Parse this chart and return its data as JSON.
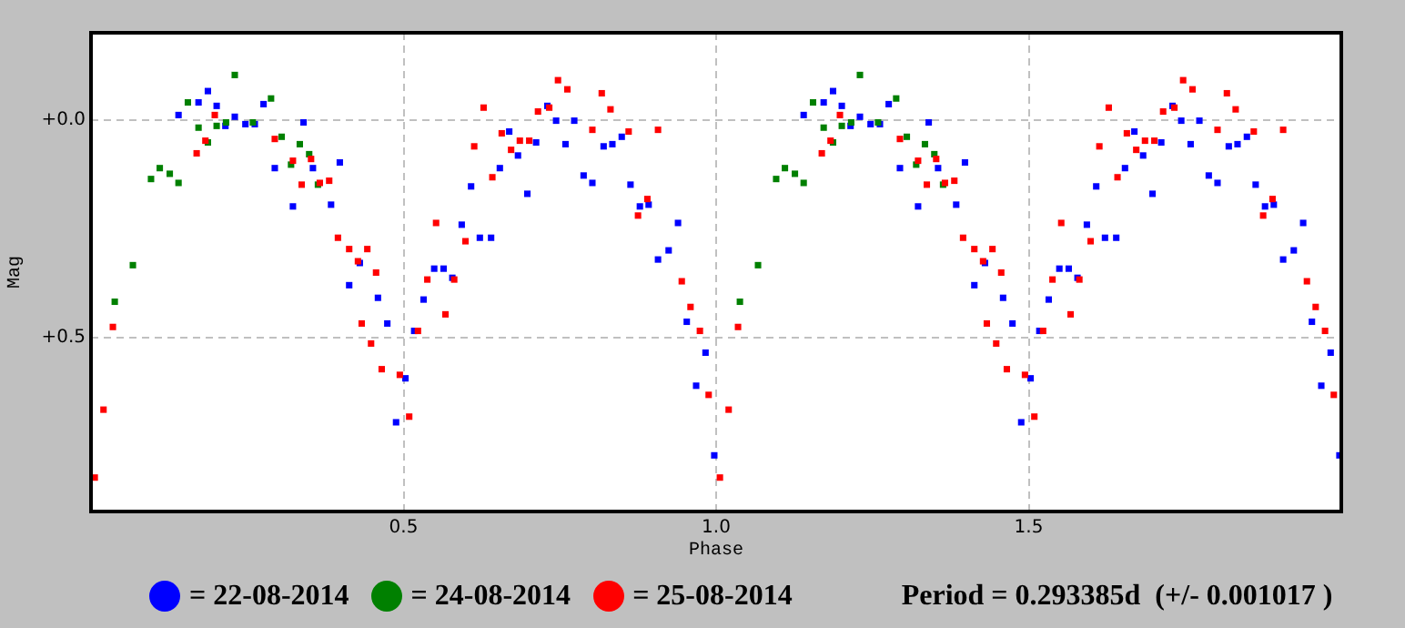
{
  "chart_data": {
    "type": "scatter",
    "xlabel": "Phase",
    "ylabel": "Mag",
    "xlim": [
      0,
      2.0
    ],
    "xticks": [
      0.5,
      {
        "value": 1.0,
        "label": "1.0"
      },
      1.5
    ],
    "ylim": [
      0.9,
      -0.2
    ],
    "yticks": [
      {
        "value": 0,
        "label": "+0.0"
      },
      {
        "value": 0.5,
        "label": "+0.5"
      }
    ],
    "grid": true,
    "marker": "square",
    "legend": "bottom",
    "annotations": [
      "Period = 0.293385d  (+/- 0.001017 )"
    ],
    "series": [
      {
        "name": "= 22-08-2014",
        "color": "#0000ff",
        "x": [
          0.187,
          0.172,
          0.201,
          0.14,
          0.23,
          0.215,
          0.247,
          0.262,
          0.276,
          0.34,
          0.294,
          0.355,
          0.398,
          0.323,
          0.384,
          0.43,
          0.413,
          0.459,
          0.474,
          0.517,
          0.503,
          0.488,
          0.564,
          0.549,
          0.578,
          0.532,
          0.593,
          0.622,
          0.64,
          0.608,
          0.654,
          0.73,
          0.744,
          0.773,
          0.669,
          0.712,
          0.759,
          0.683,
          0.82,
          0.834,
          0.849,
          0.788,
          0.802,
          0.863,
          0.698,
          0.892,
          0.878,
          0.939,
          0.924,
          0.907,
          0.953,
          0.983,
          0.968,
          0.997,
          1.187,
          1.172,
          1.201,
          1.14,
          1.23,
          1.215,
          1.247,
          1.262,
          1.276,
          1.34,
          1.294,
          1.355,
          1.398,
          1.323,
          1.384,
          1.43,
          1.413,
          1.459,
          1.474,
          1.517,
          1.503,
          1.488,
          1.564,
          1.549,
          1.578,
          1.532,
          1.593,
          1.622,
          1.64,
          1.608,
          1.654,
          1.73,
          1.744,
          1.773,
          1.669,
          1.712,
          1.759,
          1.683,
          1.82,
          1.834,
          1.849,
          1.788,
          1.802,
          1.863,
          1.698,
          1.892,
          1.878,
          1.939,
          1.924,
          1.907,
          1.953,
          1.983,
          1.968,
          1.997
        ],
        "values": [
          -0.066,
          -0.04,
          -0.032,
          -0.011,
          -0.007,
          0.014,
          0.01,
          0.01,
          -0.036,
          0.006,
          0.111,
          0.111,
          0.098,
          0.199,
          0.195,
          0.329,
          0.38,
          0.409,
          0.468,
          0.485,
          0.594,
          0.695,
          0.342,
          0.342,
          0.363,
          0.413,
          0.241,
          0.271,
          0.271,
          0.153,
          0.111,
          -0.032,
          0.002,
          0.002,
          0.027,
          0.052,
          0.056,
          0.082,
          0.061,
          0.056,
          0.039,
          0.128,
          0.145,
          0.149,
          0.17,
          0.195,
          0.199,
          0.237,
          0.3,
          0.321,
          0.464,
          0.535,
          0.611,
          0.771,
          -0.066,
          -0.04,
          -0.032,
          -0.011,
          -0.007,
          0.014,
          0.01,
          0.01,
          -0.036,
          0.006,
          0.111,
          0.111,
          0.098,
          0.199,
          0.195,
          0.329,
          0.38,
          0.409,
          0.468,
          0.485,
          0.594,
          0.695,
          0.342,
          0.342,
          0.363,
          0.413,
          0.241,
          0.271,
          0.271,
          0.153,
          0.111,
          -0.032,
          0.002,
          0.002,
          0.027,
          0.052,
          0.056,
          0.082,
          0.061,
          0.056,
          0.039,
          0.128,
          0.145,
          0.149,
          0.17,
          0.195,
          0.199,
          0.237,
          0.3,
          0.321,
          0.464,
          0.535,
          0.611,
          0.771
        ]
      },
      {
        "name": "= 24-08-2014",
        "color": "#008000",
        "x": [
          0.23,
          0.155,
          0.288,
          0.172,
          0.201,
          0.216,
          0.259,
          0.187,
          0.305,
          0.334,
          0.349,
          0.32,
          0.363,
          0.11,
          0.126,
          0.096,
          0.14,
          0.067,
          0.038,
          1.23,
          1.155,
          1.288,
          1.172,
          1.201,
          1.216,
          1.259,
          1.187,
          1.305,
          1.334,
          1.349,
          1.32,
          1.363,
          1.11,
          1.126,
          1.096,
          1.14,
          1.067,
          1.038
        ],
        "values": [
          -0.103,
          -0.04,
          -0.049,
          0.018,
          0.014,
          0.006,
          0.006,
          0.052,
          0.039,
          0.056,
          0.079,
          0.103,
          0.149,
          0.111,
          0.124,
          0.136,
          0.145,
          0.334,
          0.418,
          -0.103,
          -0.04,
          -0.049,
          0.018,
          0.014,
          0.006,
          0.006,
          0.052,
          0.039,
          0.056,
          0.079,
          0.103,
          0.149,
          0.111,
          0.124,
          0.136,
          0.145,
          0.334,
          0.418
        ]
      },
      {
        "name": "= 25-08-2014",
        "color": "#ff0000",
        "x": [
          0.198,
          0.183,
          0.169,
          0.294,
          0.323,
          0.352,
          0.337,
          0.366,
          0.381,
          0.395,
          0.413,
          0.442,
          0.427,
          0.456,
          0.433,
          0.448,
          0.465,
          0.494,
          0.509,
          0.523,
          0.567,
          0.538,
          0.581,
          0.599,
          0.552,
          0.613,
          0.642,
          0.628,
          0.657,
          0.035,
          0.02,
          0.006,
          0.747,
          0.762,
          0.817,
          0.733,
          0.715,
          0.831,
          0.802,
          0.86,
          0.907,
          0.686,
          0.701,
          0.672,
          0.89,
          0.875,
          0.945,
          0.959,
          0.974,
          0.988,
          1.198,
          1.183,
          1.169,
          1.294,
          1.323,
          1.352,
          1.337,
          1.366,
          1.381,
          1.395,
          1.413,
          1.442,
          1.427,
          1.456,
          1.433,
          1.448,
          1.465,
          1.494,
          1.509,
          1.523,
          1.567,
          1.538,
          1.581,
          1.599,
          1.552,
          1.613,
          1.642,
          1.628,
          1.657,
          1.035,
          1.02,
          1.006,
          1.747,
          1.762,
          1.817,
          1.733,
          1.715,
          1.831,
          1.802,
          1.86,
          1.907,
          1.686,
          1.701,
          1.672,
          1.89,
          1.875,
          1.945,
          1.959,
          1.974,
          1.988
        ],
        "values": [
          -0.011,
          0.048,
          0.077,
          0.044,
          0.094,
          0.09,
          0.149,
          0.145,
          0.14,
          0.271,
          0.297,
          0.297,
          0.325,
          0.351,
          0.468,
          0.514,
          0.573,
          0.586,
          0.682,
          0.485,
          0.447,
          0.367,
          0.367,
          0.279,
          0.237,
          0.061,
          0.132,
          -0.028,
          0.031,
          0.476,
          0.666,
          0.822,
          -0.091,
          -0.07,
          -0.061,
          -0.028,
          -0.019,
          -0.024,
          0.023,
          0.027,
          0.023,
          0.048,
          0.048,
          0.069,
          0.182,
          0.22,
          0.371,
          0.43,
          0.485,
          0.632,
          -0.011,
          0.048,
          0.077,
          0.044,
          0.094,
          0.09,
          0.149,
          0.145,
          0.14,
          0.271,
          0.297,
          0.297,
          0.325,
          0.351,
          0.468,
          0.514,
          0.573,
          0.586,
          0.682,
          0.485,
          0.447,
          0.367,
          0.367,
          0.279,
          0.237,
          0.061,
          0.132,
          -0.028,
          0.031,
          0.476,
          0.666,
          0.822,
          -0.091,
          -0.07,
          -0.061,
          -0.028,
          -0.019,
          -0.024,
          0.023,
          0.027,
          0.023,
          0.048,
          0.048,
          0.069,
          0.182,
          0.22,
          0.371,
          0.43,
          0.485,
          0.632
        ]
      }
    ]
  }
}
